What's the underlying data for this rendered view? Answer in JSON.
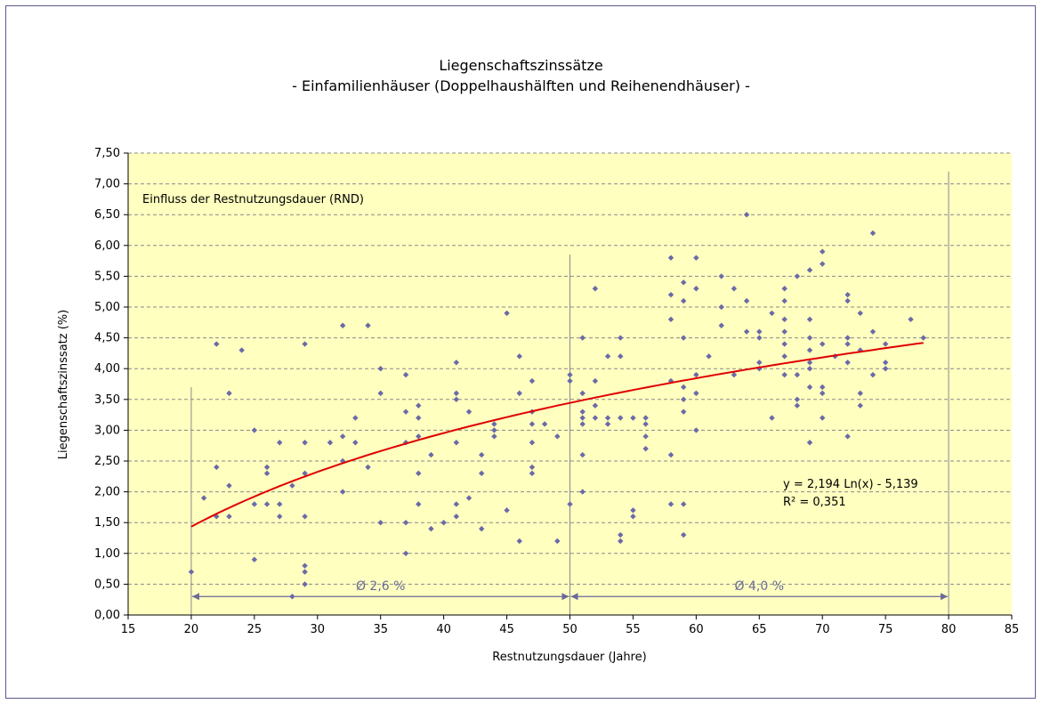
{
  "chart_data": {
    "type": "scatter",
    "title": "Liegenschaftszinssätze",
    "subtitle": "- Einfamilienhäuser (Doppelhaushälften und Reihenendhäuser) -",
    "xlabel": "Restnutzungsdauer (Jahre)",
    "ylabel": "Liegenschaftszinssatz (%)",
    "xlim": [
      15,
      85
    ],
    "ylim": [
      0,
      7.5
    ],
    "x_ticks": [
      "15",
      "20",
      "25",
      "30",
      "35",
      "40",
      "45",
      "50",
      "55",
      "60",
      "65",
      "70",
      "75",
      "80",
      "85"
    ],
    "y_ticks": [
      "0,00",
      "0,50",
      "1,00",
      "1,50",
      "2,00",
      "2,50",
      "3,00",
      "3,50",
      "4,00",
      "4,50",
      "5,00",
      "5,50",
      "6,00",
      "6,50",
      "7,00",
      "7,50"
    ],
    "grid": "horizontal dashed",
    "plot_background": "#ffffc0",
    "marker_color": "#6a6aa8",
    "trend_color": "#e00000",
    "annotation_box": "Einfluss der Restnutzungsdauer (RND)",
    "trend": {
      "equation": "y = 2,194 Ln(x) - 5,139",
      "r2": "R² = 0,351",
      "a": 2.194,
      "b": -5.139,
      "x_from": 20,
      "x_to": 78
    },
    "ranges": [
      {
        "from": 20,
        "to": 50,
        "label": "Ø 2,6 %"
      },
      {
        "from": 50,
        "to": 80,
        "label": "Ø 4,0 %"
      }
    ],
    "points": [
      [
        20,
        0.7
      ],
      [
        21,
        1.9
      ],
      [
        22,
        4.4
      ],
      [
        22,
        2.4
      ],
      [
        22,
        1.6
      ],
      [
        23,
        3.6
      ],
      [
        23,
        2.1
      ],
      [
        23,
        1.6
      ],
      [
        24,
        4.3
      ],
      [
        25,
        3.0
      ],
      [
        25,
        1.8
      ],
      [
        25,
        0.9
      ],
      [
        26,
        2.4
      ],
      [
        26,
        2.3
      ],
      [
        26,
        1.8
      ],
      [
        27,
        2.8
      ],
      [
        27,
        1.8
      ],
      [
        27,
        1.6
      ],
      [
        28,
        2.1
      ],
      [
        28,
        0.3
      ],
      [
        29,
        4.4
      ],
      [
        29,
        2.8
      ],
      [
        29,
        2.3
      ],
      [
        29,
        1.6
      ],
      [
        29,
        0.8
      ],
      [
        29,
        0.7
      ],
      [
        29,
        0.5
      ],
      [
        31,
        2.8
      ],
      [
        32,
        4.7
      ],
      [
        32,
        2.9
      ],
      [
        32,
        2.5
      ],
      [
        32,
        2.0
      ],
      [
        33,
        3.2
      ],
      [
        33,
        2.8
      ],
      [
        34,
        4.7
      ],
      [
        34,
        2.4
      ],
      [
        35,
        4.0
      ],
      [
        35,
        3.6
      ],
      [
        35,
        1.5
      ],
      [
        37,
        3.9
      ],
      [
        37,
        3.3
      ],
      [
        37,
        2.8
      ],
      [
        37,
        1.5
      ],
      [
        37,
        1.0
      ],
      [
        38,
        3.4
      ],
      [
        38,
        3.2
      ],
      [
        38,
        2.9
      ],
      [
        38,
        2.3
      ],
      [
        38,
        1.8
      ],
      [
        39,
        2.6
      ],
      [
        39,
        1.4
      ],
      [
        40,
        1.5
      ],
      [
        41,
        4.1
      ],
      [
        41,
        3.6
      ],
      [
        41,
        3.5
      ],
      [
        41,
        2.8
      ],
      [
        41,
        1.8
      ],
      [
        41,
        1.6
      ],
      [
        42,
        3.3
      ],
      [
        42,
        1.9
      ],
      [
        43,
        2.6
      ],
      [
        43,
        2.3
      ],
      [
        43,
        1.4
      ],
      [
        44,
        3.1
      ],
      [
        44,
        3.0
      ],
      [
        44,
        2.9
      ],
      [
        45,
        4.9
      ],
      [
        45,
        1.7
      ],
      [
        46,
        4.2
      ],
      [
        46,
        3.6
      ],
      [
        46,
        1.2
      ],
      [
        47,
        3.8
      ],
      [
        47,
        3.3
      ],
      [
        47,
        3.1
      ],
      [
        47,
        2.8
      ],
      [
        47,
        2.4
      ],
      [
        47,
        2.3
      ],
      [
        48,
        3.1
      ],
      [
        49,
        2.9
      ],
      [
        49,
        1.2
      ],
      [
        50,
        3.9
      ],
      [
        50,
        3.8
      ],
      [
        50,
        1.8
      ],
      [
        51,
        4.5
      ],
      [
        51,
        3.6
      ],
      [
        51,
        3.3
      ],
      [
        51,
        3.2
      ],
      [
        51,
        3.1
      ],
      [
        51,
        2.6
      ],
      [
        51,
        2.0
      ],
      [
        52,
        5.3
      ],
      [
        52,
        3.8
      ],
      [
        52,
        3.4
      ],
      [
        52,
        3.2
      ],
      [
        53,
        4.2
      ],
      [
        53,
        3.2
      ],
      [
        53,
        3.1
      ],
      [
        54,
        4.5
      ],
      [
        54,
        4.2
      ],
      [
        54,
        3.2
      ],
      [
        54,
        1.3
      ],
      [
        54,
        1.2
      ],
      [
        55,
        3.2
      ],
      [
        55,
        1.7
      ],
      [
        55,
        1.6
      ],
      [
        56,
        3.2
      ],
      [
        56,
        3.1
      ],
      [
        56,
        2.9
      ],
      [
        56,
        2.7
      ],
      [
        58,
        5.8
      ],
      [
        58,
        5.2
      ],
      [
        58,
        4.8
      ],
      [
        58,
        3.8
      ],
      [
        58,
        2.6
      ],
      [
        58,
        1.8
      ],
      [
        59,
        5.4
      ],
      [
        59,
        5.1
      ],
      [
        59,
        4.5
      ],
      [
        59,
        3.7
      ],
      [
        59,
        3.5
      ],
      [
        59,
        3.3
      ],
      [
        59,
        1.8
      ],
      [
        59,
        1.3
      ],
      [
        60,
        5.8
      ],
      [
        60,
        5.3
      ],
      [
        60,
        3.9
      ],
      [
        60,
        3.6
      ],
      [
        60,
        3.0
      ],
      [
        61,
        4.2
      ],
      [
        62,
        5.5
      ],
      [
        62,
        5.0
      ],
      [
        62,
        4.7
      ],
      [
        63,
        5.3
      ],
      [
        63,
        3.9
      ],
      [
        64,
        6.5
      ],
      [
        64,
        5.1
      ],
      [
        64,
        4.6
      ],
      [
        65,
        4.6
      ],
      [
        65,
        4.5
      ],
      [
        65,
        4.1
      ],
      [
        65,
        4.0
      ],
      [
        66,
        4.9
      ],
      [
        66,
        3.2
      ],
      [
        67,
        5.3
      ],
      [
        67,
        5.1
      ],
      [
        67,
        4.8
      ],
      [
        67,
        4.6
      ],
      [
        67,
        4.4
      ],
      [
        67,
        4.2
      ],
      [
        67,
        3.9
      ],
      [
        68,
        5.5
      ],
      [
        68,
        3.9
      ],
      [
        68,
        3.5
      ],
      [
        68,
        3.4
      ],
      [
        69,
        5.6
      ],
      [
        69,
        4.8
      ],
      [
        69,
        4.5
      ],
      [
        69,
        4.3
      ],
      [
        69,
        4.1
      ],
      [
        69,
        4.0
      ],
      [
        69,
        3.7
      ],
      [
        69,
        2.8
      ],
      [
        70,
        5.9
      ],
      [
        70,
        5.7
      ],
      [
        70,
        4.4
      ],
      [
        70,
        3.7
      ],
      [
        70,
        3.6
      ],
      [
        70,
        3.2
      ],
      [
        71,
        4.2
      ],
      [
        72,
        5.2
      ],
      [
        72,
        5.1
      ],
      [
        72,
        4.5
      ],
      [
        72,
        4.4
      ],
      [
        72,
        4.1
      ],
      [
        72,
        2.9
      ],
      [
        73,
        4.9
      ],
      [
        73,
        4.3
      ],
      [
        73,
        3.6
      ],
      [
        73,
        3.4
      ],
      [
        74,
        6.2
      ],
      [
        74,
        4.6
      ],
      [
        74,
        3.9
      ],
      [
        75,
        4.4
      ],
      [
        75,
        4.1
      ],
      [
        75,
        4.0
      ],
      [
        77,
        4.8
      ],
      [
        78,
        4.5
      ]
    ]
  }
}
